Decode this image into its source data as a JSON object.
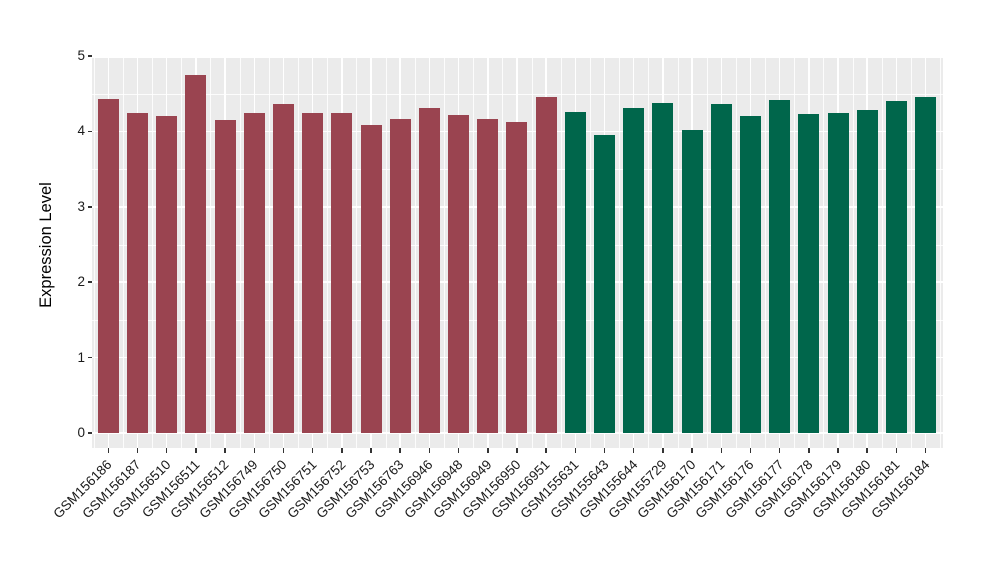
{
  "figure": {
    "background_color": "#FFFFFF",
    "panel_color": "#EBEBEB",
    "grid_color": "#FFFFFF",
    "tick_color": "#333333",
    "tick_label_color": "#1A1A1A"
  },
  "chart_data": {
    "type": "bar",
    "title": "",
    "xlabel": "",
    "ylabel": "Expression Level",
    "ylim": [
      0,
      5
    ],
    "yticks": [
      "0",
      "1",
      "2",
      "3",
      "4",
      "5"
    ],
    "grid": "major white lines at integers, minor white lines at halves, on gray panel",
    "legend_position": "none",
    "x_tick_rotation_deg": 45,
    "groups": [
      {
        "name": "left-group",
        "color": "#9A4450",
        "count": 16
      },
      {
        "name": "right-group",
        "color": "#00664B",
        "count": 13
      }
    ],
    "bars": [
      {
        "label": "GSM156186",
        "value": 4.43,
        "group": 0
      },
      {
        "label": "GSM156187",
        "value": 4.25,
        "group": 0
      },
      {
        "label": "GSM156510",
        "value": 4.21,
        "group": 0
      },
      {
        "label": "GSM156511",
        "value": 4.75,
        "group": 0
      },
      {
        "label": "GSM156512",
        "value": 4.15,
        "group": 0
      },
      {
        "label": "GSM156749",
        "value": 4.25,
        "group": 0
      },
      {
        "label": "GSM156750",
        "value": 4.37,
        "group": 0
      },
      {
        "label": "GSM156751",
        "value": 4.25,
        "group": 0
      },
      {
        "label": "GSM156752",
        "value": 4.24,
        "group": 0
      },
      {
        "label": "GSM156753",
        "value": 4.09,
        "group": 0
      },
      {
        "label": "GSM156763",
        "value": 4.17,
        "group": 0
      },
      {
        "label": "GSM156946",
        "value": 4.31,
        "group": 0
      },
      {
        "label": "GSM156948",
        "value": 4.22,
        "group": 0
      },
      {
        "label": "GSM156949",
        "value": 4.16,
        "group": 0
      },
      {
        "label": "GSM156950",
        "value": 4.12,
        "group": 0
      },
      {
        "label": "GSM156951",
        "value": 4.45,
        "group": 0
      },
      {
        "label": "GSM155631",
        "value": 4.26,
        "group": 1
      },
      {
        "label": "GSM155643",
        "value": 3.95,
        "group": 1
      },
      {
        "label": "GSM155644",
        "value": 4.31,
        "group": 1
      },
      {
        "label": "GSM155729",
        "value": 4.38,
        "group": 1
      },
      {
        "label": "GSM156170",
        "value": 4.02,
        "group": 1
      },
      {
        "label": "GSM156171",
        "value": 4.36,
        "group": 1
      },
      {
        "label": "GSM156176",
        "value": 4.21,
        "group": 1
      },
      {
        "label": "GSM156177",
        "value": 4.41,
        "group": 1
      },
      {
        "label": "GSM156178",
        "value": 4.23,
        "group": 1
      },
      {
        "label": "GSM156179",
        "value": 4.25,
        "group": 1
      },
      {
        "label": "GSM156180",
        "value": 4.29,
        "group": 1
      },
      {
        "label": "GSM156181",
        "value": 4.4,
        "group": 1
      },
      {
        "label": "GSM156184",
        "value": 4.46,
        "group": 1
      }
    ]
  }
}
